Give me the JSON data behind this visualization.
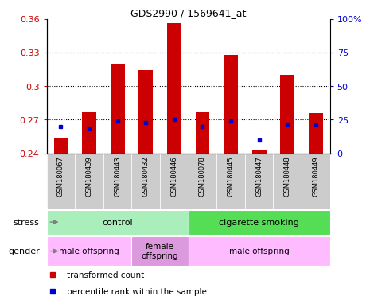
{
  "title": "GDS2990 / 1569641_at",
  "samples": [
    "GSM180067",
    "GSM180439",
    "GSM180443",
    "GSM180432",
    "GSM180446",
    "GSM180078",
    "GSM180445",
    "GSM180447",
    "GSM180448",
    "GSM180449"
  ],
  "bar_values": [
    0.253,
    0.277,
    0.319,
    0.314,
    0.356,
    0.277,
    0.328,
    0.243,
    0.31,
    0.276
  ],
  "blue_percentile": [
    20,
    19,
    24,
    23,
    25,
    20,
    24,
    10,
    22,
    21
  ],
  "ylim": [
    0.24,
    0.36
  ],
  "yticks": [
    0.24,
    0.27,
    0.3,
    0.33,
    0.36
  ],
  "right_yticks": [
    0,
    25,
    50,
    75,
    100
  ],
  "right_ylabels": [
    "0",
    "25",
    "50",
    "75",
    "100%"
  ],
  "bar_color": "#cc0000",
  "blue_color": "#0000cc",
  "stress_groups": [
    {
      "label": "control",
      "start": 0,
      "end": 4,
      "color": "#aaeebb"
    },
    {
      "label": "cigarette smoking",
      "start": 5,
      "end": 9,
      "color": "#55dd55"
    }
  ],
  "gender_groups": [
    {
      "label": "male offspring",
      "start": 0,
      "end": 2,
      "color": "#ffbbff"
    },
    {
      "label": "female\noffspring",
      "start": 3,
      "end": 4,
      "color": "#dd99dd"
    },
    {
      "label": "male offspring",
      "start": 5,
      "end": 9,
      "color": "#ffbbff"
    }
  ],
  "legend_items": [
    {
      "color": "#cc0000",
      "label": "transformed count"
    },
    {
      "color": "#0000cc",
      "label": "percentile rank within the sample"
    }
  ],
  "label_color_left": "#cc0000",
  "label_color_right": "#0000cc",
  "sample_bg_color": "#cccccc",
  "gridline_color": "#000000"
}
